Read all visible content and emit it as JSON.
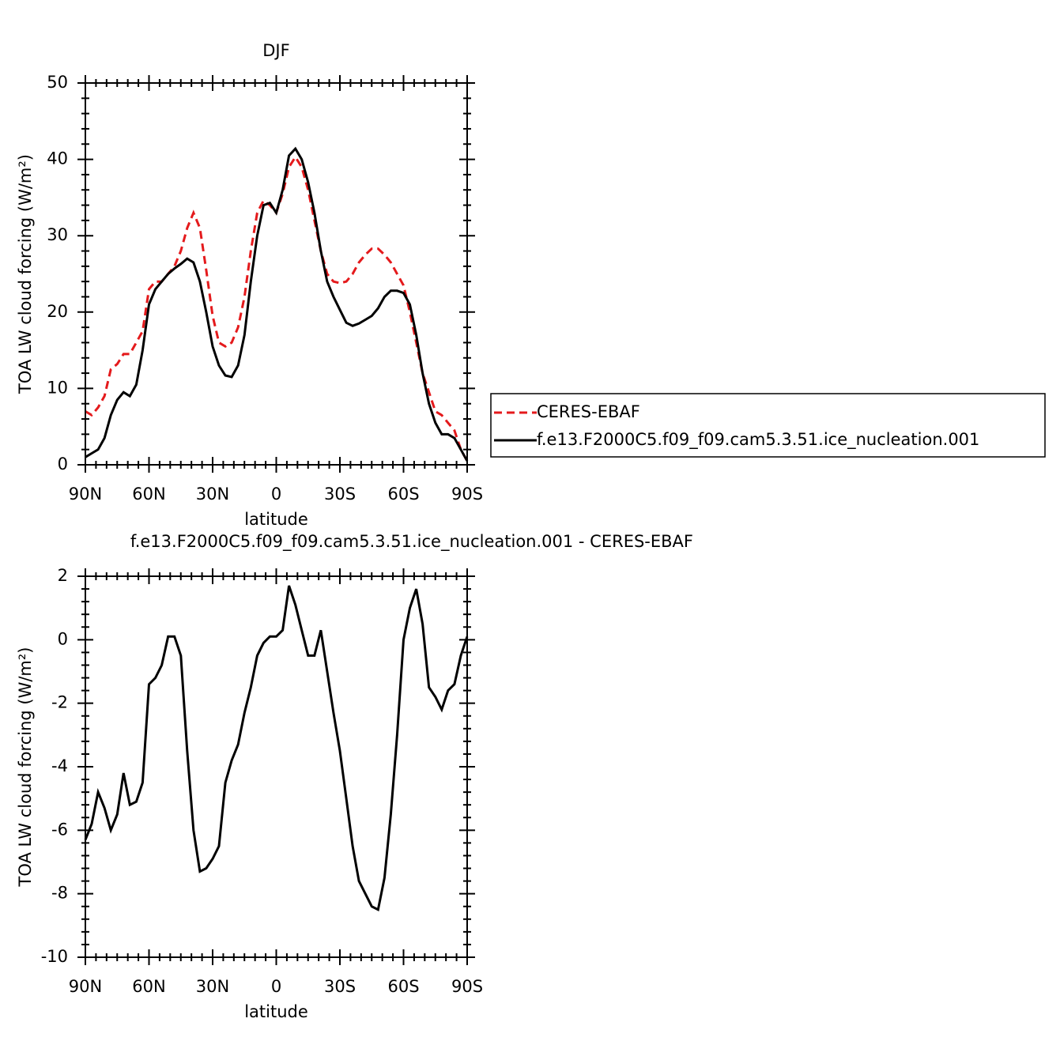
{
  "chart_data": [
    {
      "type": "line",
      "title": "DJF",
      "xlabel": "latitude",
      "ylabel": "TOA LW cloud forcing (W/m²)",
      "xlim": [
        90,
        -90
      ],
      "xticks": [
        {
          "value": 90,
          "label": "90N"
        },
        {
          "value": 60,
          "label": "60N"
        },
        {
          "value": 30,
          "label": "30N"
        },
        0,
        {
          "value": -30,
          "label": "30S"
        },
        {
          "value": -60,
          "label": "60S"
        },
        {
          "value": -90,
          "label": "90S"
        }
      ],
      "ylim": [
        0,
        50
      ],
      "yticks": [
        0,
        10,
        20,
        30,
        40,
        50
      ],
      "legend": "right",
      "x": [
        90,
        87,
        84,
        81,
        78,
        75,
        72,
        69,
        66,
        63,
        60,
        57,
        54,
        51,
        48,
        45,
        42,
        39,
        36,
        33,
        30,
        27,
        24,
        21,
        18,
        15,
        12,
        9,
        6,
        3,
        0,
        -3,
        -6,
        -9,
        -12,
        -15,
        -18,
        -21,
        -24,
        -27,
        -30,
        -33,
        -36,
        -39,
        -42,
        -45,
        -48,
        -51,
        -54,
        -57,
        -60,
        -63,
        -66,
        -69,
        -72,
        -75,
        -78,
        -81,
        -84,
        -87,
        -90
      ],
      "series": [
        {
          "name": "CERES-EBAF",
          "color": "#e41a1c",
          "style": "dashed",
          "values": [
            7,
            6.5,
            7.5,
            9,
            12.5,
            13.2,
            14.5,
            14.5,
            16,
            17.5,
            23,
            24,
            24,
            25,
            26,
            28,
            31,
            33,
            31,
            25.5,
            19.5,
            16,
            15.5,
            16,
            18,
            22,
            28,
            33,
            34.6,
            34,
            33,
            35.5,
            39,
            40.3,
            39,
            36,
            32,
            28,
            25,
            24,
            23.8,
            24,
            25,
            26.5,
            27.5,
            28.3,
            28.3,
            27.5,
            26.5,
            25,
            23.5,
            20,
            16,
            12,
            9.5,
            7,
            6.5,
            5.5,
            4.5,
            2,
            0.5
          ]
        },
        {
          "name": "f.e13.F2000C5.f09_f09.cam5.3.51.ice_nucleation.001",
          "color": "#000000",
          "style": "solid",
          "values": [
            1,
            1.5,
            2,
            3.5,
            6.5,
            8.5,
            9.5,
            9,
            10.5,
            15,
            21,
            23,
            24,
            25,
            25.7,
            26.3,
            27,
            26.5,
            24,
            20,
            15.5,
            13,
            11.7,
            11.5,
            13,
            17,
            24,
            30,
            34,
            34.3,
            33,
            36,
            40.5,
            41.4,
            40,
            37,
            33,
            28,
            24,
            22,
            20.3,
            18.6,
            18.2,
            18.5,
            19,
            19.5,
            20.5,
            22,
            22.8,
            22.8,
            22.5,
            21,
            17,
            12,
            8,
            5.5,
            4,
            4,
            3.5,
            2,
            0.5
          ]
        }
      ]
    },
    {
      "type": "line",
      "title": "f.e13.F2000C5.f09_f09.cam5.3.51.ice_nucleation.001 - CERES-EBAF",
      "xlabel": "latitude",
      "ylabel": "TOA LW cloud forcing (W/m²)",
      "xlim": [
        90,
        -90
      ],
      "xticks": [
        {
          "value": 90,
          "label": "90N"
        },
        {
          "value": 60,
          "label": "60N"
        },
        {
          "value": 30,
          "label": "30N"
        },
        0,
        {
          "value": -30,
          "label": "30S"
        },
        {
          "value": -60,
          "label": "60S"
        },
        {
          "value": -90,
          "label": "90S"
        }
      ],
      "ylim": [
        -10,
        2
      ],
      "yticks": [
        -10,
        -8,
        -6,
        -4,
        -2,
        0,
        2
      ],
      "x": [
        90,
        87,
        84,
        81,
        78,
        75,
        72,
        69,
        66,
        63,
        60,
        57,
        54,
        51,
        48,
        45,
        42,
        39,
        36,
        33,
        30,
        27,
        24,
        21,
        18,
        15,
        12,
        9,
        6,
        3,
        0,
        -3,
        -6,
        -9,
        -12,
        -15,
        -18,
        -21,
        -24,
        -27,
        -30,
        -33,
        -36,
        -39,
        -42,
        -45,
        -48,
        -51,
        -54,
        -57,
        -60,
        -63,
        -66,
        -69,
        -72,
        -75,
        -78,
        -81,
        -84,
        -87,
        -90
      ],
      "series": [
        {
          "color": "#000000",
          "style": "solid",
          "values": [
            -6.3,
            -5.8,
            -4.8,
            -5.3,
            -6,
            -5.5,
            -4.2,
            -5.2,
            -5.1,
            -4.5,
            -1.4,
            -1.2,
            -0.8,
            0.1,
            0.1,
            -0.5,
            -3.5,
            -6,
            -7.3,
            -7.2,
            -6.9,
            -6.5,
            -4.5,
            -3.8,
            -3.3,
            -2.3,
            -1.5,
            -0.5,
            -0.1,
            0.1,
            0.1,
            0.3,
            1.7,
            1.1,
            0.3,
            -0.5,
            -0.5,
            0.3,
            -1,
            -2.3,
            -3.5,
            -5,
            -6.5,
            -7.6,
            -8,
            -8.4,
            -8.5,
            -7.5,
            -5.5,
            -3,
            0,
            1,
            1.6,
            0.5,
            -1.5,
            -1.8,
            -2.2,
            -1.6,
            -1.4,
            -0.5,
            0.1
          ]
        }
      ]
    }
  ]
}
